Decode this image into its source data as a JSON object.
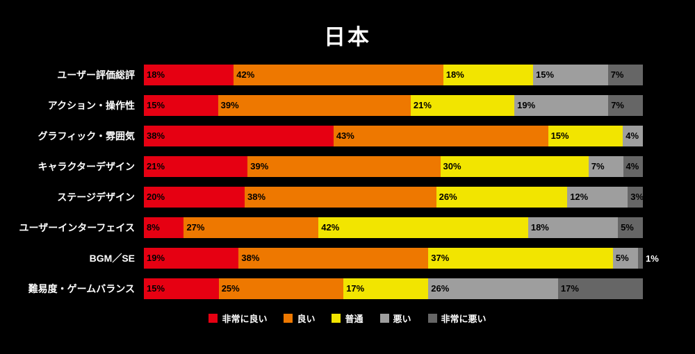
{
  "chart_data": {
    "type": "bar",
    "orientation": "horizontal-stacked",
    "title": "日本",
    "unit": "%",
    "grid": false,
    "legend_position": "bottom",
    "background_color": "#000000",
    "categories": [
      "ユーザー評価総評",
      "アクション・操作性",
      "グラフィック・雰囲気",
      "キャラクターデザイン",
      "ステージデザイン",
      "ユーザーインターフェイス",
      "BGM／SE",
      "難易度・ゲームバランス"
    ],
    "series": [
      {
        "name": "非常に良い",
        "color": "#e60012",
        "values": [
          18,
          15,
          38,
          21,
          20,
          8,
          19,
          15
        ]
      },
      {
        "name": "良い",
        "color": "#ee7800",
        "values": [
          42,
          39,
          43,
          39,
          38,
          27,
          38,
          25
        ]
      },
      {
        "name": "普通",
        "color": "#f2e500",
        "values": [
          18,
          21,
          15,
          30,
          26,
          42,
          37,
          17
        ]
      },
      {
        "name": "悪い",
        "color": "#9e9e9e",
        "values": [
          15,
          19,
          4,
          7,
          12,
          18,
          5,
          26
        ]
      },
      {
        "name": "非常に悪い",
        "color": "#666666",
        "values": [
          7,
          7,
          0,
          4,
          3,
          5,
          1,
          17
        ]
      }
    ]
  }
}
